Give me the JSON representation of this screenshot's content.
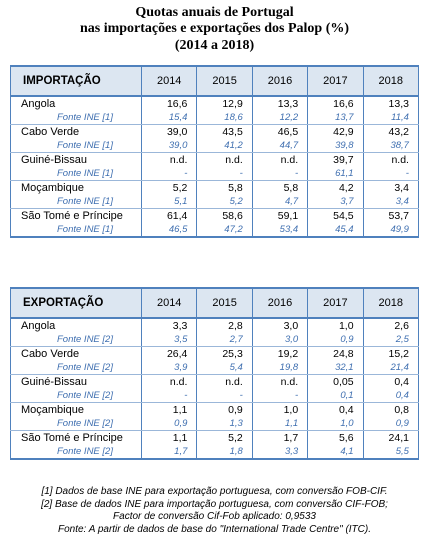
{
  "title": {
    "line1": "Quotas anuais de Portugal",
    "line2": "nas importações e exportações dos Palop (%)",
    "line3": "(2014 a 2018)"
  },
  "years": [
    "2014",
    "2015",
    "2016",
    "2017",
    "2018"
  ],
  "import": {
    "header": "IMPORTAÇÃO",
    "rows": [
      {
        "country": "Angola",
        "values": [
          "16,6",
          "12,9",
          "13,3",
          "16,6",
          "13,3"
        ],
        "source": "Fonte INE [1]",
        "source_values": [
          "15,4",
          "18,6",
          "12,2",
          "13,7",
          "11,4"
        ]
      },
      {
        "country": "Cabo Verde",
        "values": [
          "39,0",
          "43,5",
          "46,5",
          "42,9",
          "43,2"
        ],
        "source": "Fonte INE [1]",
        "source_values": [
          "39,0",
          "41,2",
          "44,7",
          "39,8",
          "38,7"
        ]
      },
      {
        "country": "Guiné-Bissau",
        "values": [
          "n.d.",
          "n.d.",
          "n.d.",
          "39,7",
          "n.d."
        ],
        "source": "Fonte INE [1]",
        "source_values": [
          "-",
          "-",
          "-",
          "61,1",
          "-"
        ]
      },
      {
        "country": "Moçambique",
        "values": [
          "5,2",
          "5,8",
          "5,8",
          "4,2",
          "3,4"
        ],
        "source": "Fonte INE [1]",
        "source_values": [
          "5,1",
          "5,2",
          "4,7",
          "3,7",
          "3,4"
        ]
      },
      {
        "country": "São Tomé e Príncipe",
        "values": [
          "61,4",
          "58,6",
          "59,1",
          "54,5",
          "53,7"
        ],
        "source": "Fonte INE [1]",
        "source_values": [
          "46,5",
          "47,2",
          "53,4",
          "45,4",
          "49,9"
        ]
      }
    ]
  },
  "export": {
    "header": "EXPORTAÇÃO",
    "rows": [
      {
        "country": "Angola",
        "values": [
          "3,3",
          "2,8",
          "3,0",
          "1,0",
          "2,6"
        ],
        "source": "Fonte INE [2]",
        "source_values": [
          "3,5",
          "2,7",
          "3,0",
          "0,9",
          "2,5"
        ]
      },
      {
        "country": "Cabo Verde",
        "values": [
          "26,4",
          "25,3",
          "19,2",
          "24,8",
          "15,2"
        ],
        "source": "Fonte INE [2]",
        "source_values": [
          "3,9",
          "5,4",
          "19,8",
          "32,1",
          "21,4"
        ]
      },
      {
        "country": "Guiné-Bissau",
        "values": [
          "n.d.",
          "n.d.",
          "n.d.",
          "0,05",
          "0,4"
        ],
        "source": "Fonte INE [2]",
        "source_values": [
          "-",
          "-",
          "-",
          "0,1",
          "0,4"
        ]
      },
      {
        "country": "Moçambique",
        "values": [
          "1,1",
          "0,9",
          "1,0",
          "0,4",
          "0,8"
        ],
        "source": "Fonte INE [2]",
        "source_values": [
          "0,9",
          "1,3",
          "1,1",
          "1,0",
          "0,9"
        ]
      },
      {
        "country": "São Tomé e Príncipe",
        "values": [
          "1,1",
          "5,2",
          "1,7",
          "5,6",
          "24,1"
        ],
        "source": "Fonte INE [2]",
        "source_values": [
          "1,7",
          "1,8",
          "3,3",
          "4,1",
          "5,5"
        ]
      }
    ]
  },
  "notes": [
    "[1] Dados de base INE para exportação portuguesa, com conversão FOB-CIF.",
    "[2] Base de dados INE para importação portuguesa, com conversão CIF-FOB;",
    "Factor de conversão Cif-Fob aplicado: 0,9533",
    "Fonte: A partir de dados de base do \"International Trade Centre\" (ITC)."
  ]
}
